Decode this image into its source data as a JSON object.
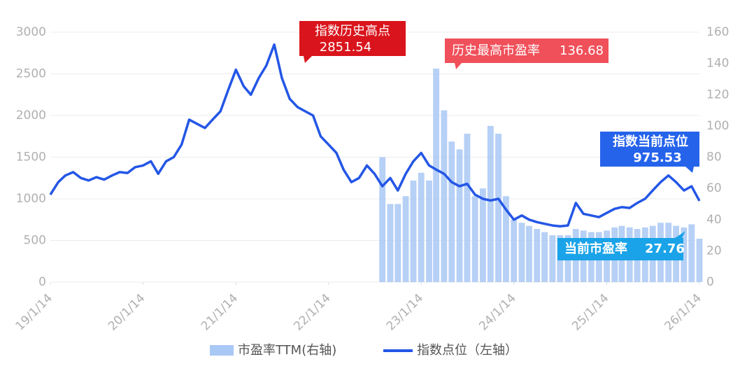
{
  "chart_data": {
    "type": "combo",
    "annotations": [
      "指数历史高点",
      "历史最高市盈率",
      "指数当前点位",
      "当前市盈率"
    ],
    "xlim": [
      "2019-01-14",
      "2026-01-14"
    ],
    "xticks": [
      {
        "value": "2019-01-14",
        "label": "19/1/14"
      },
      {
        "value": "2020-01-14",
        "label": "20/1/14"
      },
      {
        "value": "2021-01-14",
        "label": "21/1/14"
      },
      {
        "value": "2022-01-14",
        "label": "22/1/14"
      },
      {
        "value": "2023-01-14",
        "label": "23/1/14"
      },
      {
        "value": "2024-01-14",
        "label": "24/1/14"
      },
      {
        "value": "2025-01-14",
        "label": "25/1/14"
      },
      {
        "value": "2026-01-14",
        "label": "26/1/14"
      }
    ],
    "ylim": [
      0,
      3000
    ],
    "yticks": [
      0,
      500,
      1000,
      1500,
      2000,
      2500,
      3000
    ],
    "y2lim": [
      0,
      160
    ],
    "y2ticks": [
      0,
      20,
      40,
      60,
      80,
      100,
      120,
      140,
      160
    ],
    "grid": true,
    "series": [
      {
        "name": "市盈率TTM(右轴)",
        "type": "bar",
        "axis": "y2",
        "color": "#a9c8f5",
        "x": [
          "2022-08-14",
          "2022-09-14",
          "2022-10-14",
          "2022-11-14",
          "2022-12-14",
          "2023-01-14",
          "2023-02-14",
          "2023-03-14",
          "2023-04-14",
          "2023-05-14",
          "2023-06-14",
          "2023-07-14",
          "2023-08-14",
          "2023-09-14",
          "2023-10-14",
          "2023-11-14",
          "2023-12-14",
          "2024-01-14",
          "2024-02-14",
          "2024-03-14",
          "2024-04-14",
          "2024-05-14",
          "2024-06-14",
          "2024-07-14",
          "2024-08-14",
          "2024-09-14",
          "2024-10-14",
          "2024-11-14",
          "2024-12-14",
          "2025-01-14",
          "2025-02-14",
          "2025-03-14",
          "2025-04-14",
          "2025-05-14",
          "2025-06-14",
          "2025-07-14",
          "2025-08-14",
          "2025-09-14",
          "2025-10-14",
          "2025-11-14",
          "2025-12-14",
          "2026-01-14"
        ],
        "values": [
          80,
          50,
          50,
          55,
          65,
          70,
          65,
          136.68,
          110,
          90,
          85,
          95,
          55,
          60,
          100,
          95,
          55,
          40,
          38,
          36,
          34,
          32,
          30,
          30,
          30,
          34,
          33,
          32,
          32,
          33,
          35,
          36,
          35,
          34,
          35,
          36,
          38,
          38,
          36,
          35,
          37,
          27.76
        ]
      },
      {
        "name": "指数点位（左轴）",
        "type": "line",
        "color": "#2456e6",
        "x": [
          "2019-01-14",
          "2019-02-14",
          "2019-03-14",
          "2019-04-14",
          "2019-05-14",
          "2019-06-14",
          "2019-07-14",
          "2019-08-14",
          "2019-09-14",
          "2019-10-14",
          "2019-11-14",
          "2019-12-14",
          "2020-01-14",
          "2020-02-14",
          "2020-03-14",
          "2020-04-14",
          "2020-05-14",
          "2020-06-14",
          "2020-07-14",
          "2020-08-14",
          "2020-09-14",
          "2020-10-14",
          "2020-11-14",
          "2020-12-14",
          "2021-01-14",
          "2021-02-14",
          "2021-03-14",
          "2021-04-14",
          "2021-05-14",
          "2021-06-14",
          "2021-07-14",
          "2021-08-14",
          "2021-09-14",
          "2021-10-14",
          "2021-11-14",
          "2021-12-14",
          "2022-01-14",
          "2022-02-14",
          "2022-03-14",
          "2022-04-14",
          "2022-05-14",
          "2022-06-14",
          "2022-07-14",
          "2022-08-14",
          "2022-09-14",
          "2022-10-14",
          "2022-11-14",
          "2022-12-14",
          "2023-01-14",
          "2023-02-14",
          "2023-03-14",
          "2023-04-14",
          "2023-05-14",
          "2023-06-14",
          "2023-07-14",
          "2023-08-14",
          "2023-09-14",
          "2023-10-14",
          "2023-11-14",
          "2023-12-14",
          "2024-01-14",
          "2024-02-14",
          "2024-03-14",
          "2024-04-14",
          "2024-05-14",
          "2024-06-14",
          "2024-07-14",
          "2024-08-14",
          "2024-09-14",
          "2024-10-14",
          "2024-11-14",
          "2024-12-14",
          "2025-01-14",
          "2025-02-14",
          "2025-03-14",
          "2025-04-14",
          "2025-05-14",
          "2025-06-14",
          "2025-07-14",
          "2025-08-14",
          "2025-09-14",
          "2025-10-14",
          "2025-11-14",
          "2025-12-14",
          "2026-01-14"
        ],
        "values": [
          1050,
          1200,
          1280,
          1320,
          1250,
          1220,
          1260,
          1230,
          1280,
          1320,
          1310,
          1380,
          1400,
          1450,
          1300,
          1450,
          1500,
          1650,
          1950,
          1900,
          1850,
          1950,
          2050,
          2300,
          2550,
          2350,
          2250,
          2450,
          2600,
          2851.54,
          2450,
          2200,
          2100,
          2050,
          2000,
          1750,
          1650,
          1550,
          1350,
          1200,
          1250,
          1400,
          1300,
          1150,
          1250,
          1100,
          1300,
          1450,
          1550,
          1400,
          1350,
          1300,
          1200,
          1150,
          1180,
          1050,
          1000,
          980,
          1000,
          870,
          750,
          800,
          750,
          720,
          700,
          680,
          670,
          680,
          950,
          820,
          800,
          780,
          830,
          880,
          900,
          890,
          950,
          1000,
          1100,
          1200,
          1280,
          1200,
          1100,
          1150,
          975.53
        ]
      }
    ]
  }
}
